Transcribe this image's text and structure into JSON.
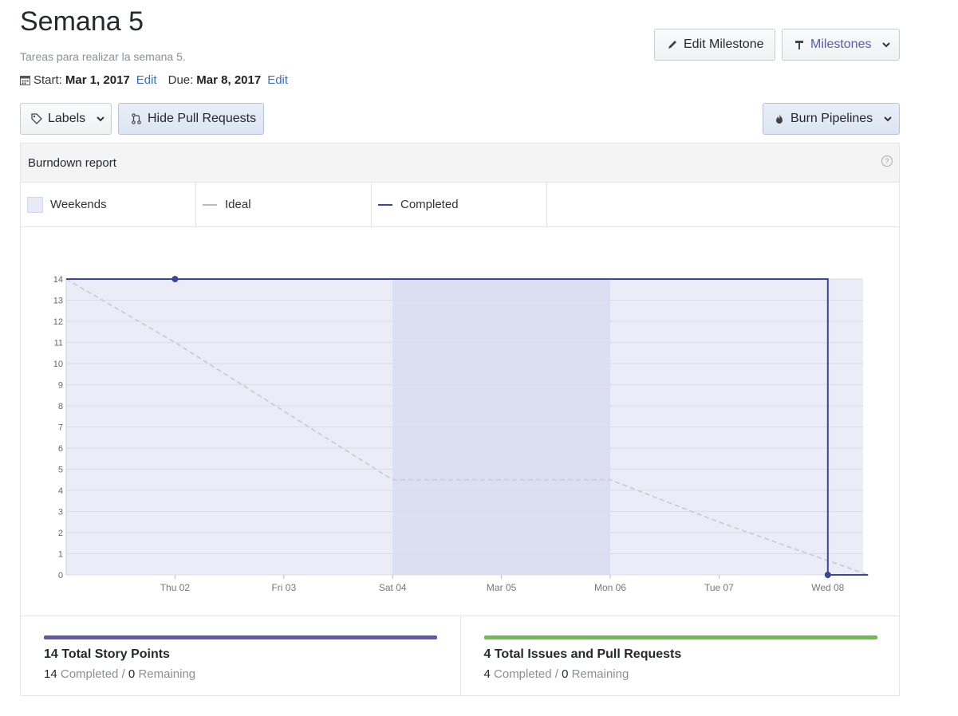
{
  "header": {
    "title": "Semana 5",
    "subtitle": "Tareas para realizar la semana 5.",
    "start_label": "Start:",
    "start_date": "Mar 1, 2017",
    "due_label": "Due:",
    "due_date": "Mar 8, 2017",
    "edit_label": "Edit"
  },
  "toolbar": {
    "edit_milestone": "Edit Milestone",
    "milestones": "Milestones",
    "labels": "Labels",
    "hide_pull_requests": "Hide Pull Requests",
    "burn_pipelines": "Burn Pipelines"
  },
  "report": {
    "title": "Burndown report",
    "help": "?",
    "legend": {
      "weekends": "Weekends",
      "ideal": "Ideal",
      "completed": "Completed"
    }
  },
  "colors": {
    "completed": "#3d4596",
    "ideal": "#cfcfd6",
    "weekend": "#dcdff2",
    "plot_bg": "#ececf8",
    "story_bar": "#5b59b3",
    "issues_bar": "#6cc04a",
    "milestones_link": "#5b59b3"
  },
  "chart_data": {
    "type": "line",
    "title": "Burndown report",
    "x_ticks": [
      "Thu 02",
      "Fri 03",
      "Sat 04",
      "Mar 05",
      "Mon 06",
      "Tue 07",
      "Wed 08"
    ],
    "x_range_days": [
      0,
      7.37
    ],
    "y_ticks": [
      0,
      1,
      2,
      3,
      4,
      5,
      6,
      7,
      8,
      9,
      10,
      11,
      12,
      13,
      14
    ],
    "ylim": [
      0,
      14
    ],
    "weekend_range_days": [
      3,
      5
    ],
    "series": [
      {
        "name": "Ideal",
        "style": "dashed",
        "points": [
          [
            0,
            14
          ],
          [
            1,
            11
          ],
          [
            2,
            7.75
          ],
          [
            3,
            4.5
          ],
          [
            5,
            4.5
          ],
          [
            6,
            2.5
          ],
          [
            7.37,
            0
          ]
        ]
      },
      {
        "name": "Completed",
        "style": "solid",
        "points": [
          [
            0,
            14
          ],
          [
            1,
            14
          ],
          [
            7,
            14
          ],
          [
            7,
            0
          ],
          [
            7.37,
            0
          ]
        ],
        "markers": [
          [
            1,
            14
          ],
          [
            7,
            0
          ]
        ]
      }
    ]
  },
  "stats": [
    {
      "title": "14 Total Story Points",
      "completed": "14",
      "completed_label": "Completed",
      "sep": "/",
      "remaining": "0",
      "remaining_label": "Remaining"
    },
    {
      "title": "4 Total Issues and Pull Requests",
      "completed": "4",
      "completed_label": "Completed",
      "sep": "/",
      "remaining": "0",
      "remaining_label": "Remaining"
    }
  ]
}
